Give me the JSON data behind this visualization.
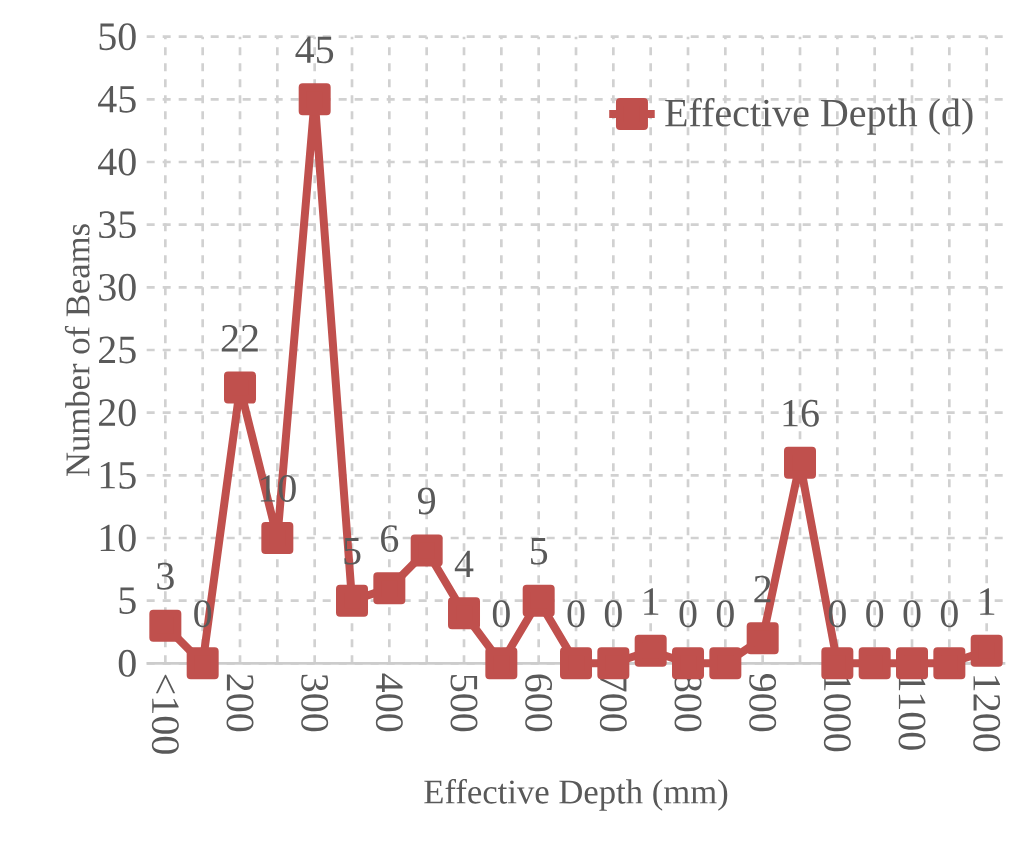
{
  "chart_data": {
    "type": "line",
    "xlabel": "Effective Depth (mm)",
    "ylabel": "Number of Beams",
    "categories": [
      "<100",
      null,
      "200",
      null,
      "300",
      null,
      "400",
      null,
      "500",
      null,
      "600",
      null,
      "700",
      null,
      "800",
      null,
      "900",
      null,
      "1000",
      null,
      "1100",
      null,
      "1200"
    ],
    "series": [
      {
        "name": "Effective Depth (d)",
        "color": "#c0504d",
        "values": [
          3,
          0,
          22,
          10,
          45,
          5,
          6,
          9,
          4,
          0,
          5,
          0,
          0,
          1,
          0,
          0,
          2,
          16,
          0,
          0,
          0,
          0,
          1
        ]
      }
    ],
    "ylim": [
      0,
      50
    ],
    "yticks": [
      0,
      5,
      10,
      15,
      20,
      25,
      30,
      35,
      40,
      45,
      50
    ],
    "grid": true,
    "legend": "top right",
    "marker": "square",
    "line_style": "solid",
    "data_labels": true
  }
}
